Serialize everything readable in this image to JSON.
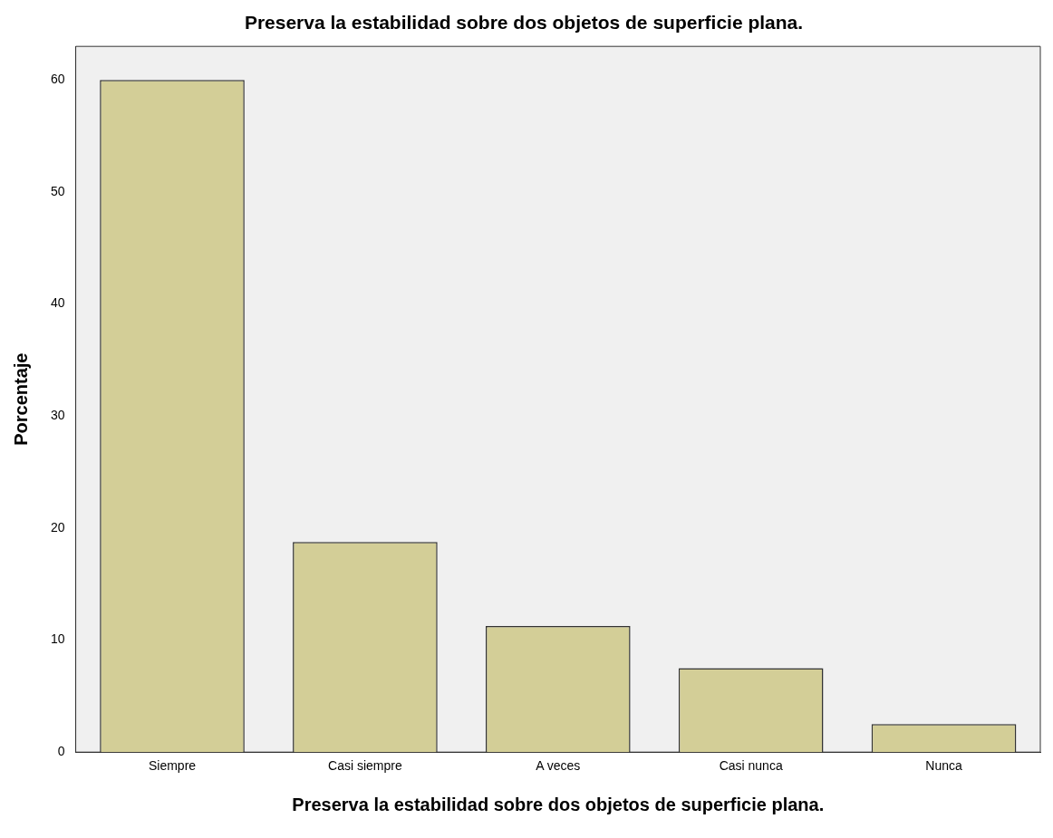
{
  "chart_data": {
    "type": "bar",
    "title": "Preserva la estabilidad sobre dos objetos de superficie plana.",
    "xlabel": "Preserva la estabilidad sobre dos objetos de superficie plana.",
    "ylabel": "Porcentaje",
    "categories": [
      "Siempre",
      "Casi siempre",
      "A veces",
      "Casi nunca",
      "Nunca"
    ],
    "values": [
      60,
      18.75,
      11.25,
      7.5,
      2.5
    ],
    "color": "#d3ce97",
    "ylim": [
      0,
      63
    ],
    "yticks": [
      0,
      10,
      20,
      30,
      40,
      50,
      60
    ],
    "grid": false,
    "legend": false
  }
}
